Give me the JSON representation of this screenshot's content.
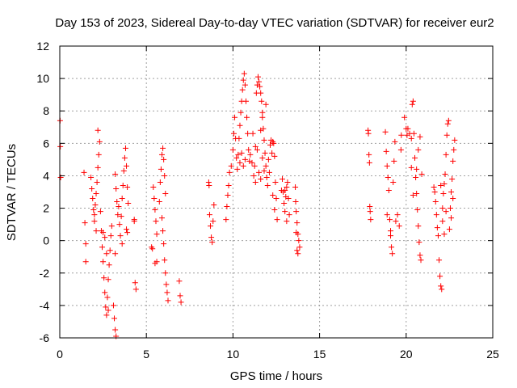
{
  "chart_data": {
    "type": "scatter",
    "title": "Day 153 of 2023, Sidereal Day-to-day VTEC variation (SDTVAR) for receiver eur2",
    "xlabel": "GPS time / hours",
    "ylabel": "SDTVAR / TECUs",
    "xlim": [
      0,
      25
    ],
    "ylim": [
      -6,
      12
    ],
    "xticks": [
      "0",
      "5",
      "10",
      "15",
      "20",
      "25"
    ],
    "yticks": [
      "-6",
      "-4",
      "-2",
      "0",
      "2",
      "4",
      "6",
      "8",
      "10",
      "12"
    ],
    "grid": true,
    "marker": "plus",
    "color": "#ff0000",
    "series": [
      {
        "name": "SDTVAR",
        "points": [
          [
            0.02,
            7.4
          ],
          [
            0.03,
            5.8
          ],
          [
            0.05,
            3.9
          ],
          [
            1.4,
            4.2
          ],
          [
            1.45,
            1.1
          ],
          [
            1.5,
            -0.2
          ],
          [
            1.5,
            -1.3
          ],
          [
            1.8,
            3.9
          ],
          [
            1.85,
            3.2
          ],
          [
            1.9,
            2.6
          ],
          [
            1.95,
            1.9
          ],
          [
            2.0,
            1.2
          ],
          [
            2.05,
            2.2
          ],
          [
            2.1,
            2.9
          ],
          [
            2.15,
            3.6
          ],
          [
            2.2,
            4.5
          ],
          [
            2.25,
            5.3
          ],
          [
            2.3,
            6.1
          ],
          [
            2.2,
            6.8
          ],
          [
            2.0,
            1.6
          ],
          [
            2.1,
            0.6
          ],
          [
            2.35,
            1.8
          ],
          [
            2.4,
            0.6
          ],
          [
            2.45,
            -0.4
          ],
          [
            2.5,
            -1.3
          ],
          [
            2.55,
            -2.3
          ],
          [
            2.6,
            -3.2
          ],
          [
            2.65,
            -4.1
          ],
          [
            2.7,
            -4.6
          ],
          [
            2.75,
            -3.5
          ],
          [
            2.8,
            -2.4
          ],
          [
            2.85,
            -1.5
          ],
          [
            2.9,
            -0.6
          ],
          [
            2.95,
            0.3
          ],
          [
            3.0,
            0.9
          ],
          [
            2.6,
            0.2
          ],
          [
            2.7,
            -0.8
          ],
          [
            2.5,
            0.5
          ],
          [
            2.8,
            -4.3
          ],
          [
            3.1,
            -4.0
          ],
          [
            3.15,
            -4.8
          ],
          [
            3.2,
            -5.5
          ],
          [
            3.25,
            -5.9
          ],
          [
            3.2,
            4.1
          ],
          [
            3.25,
            3.2
          ],
          [
            3.3,
            2.4
          ],
          [
            3.35,
            1.6
          ],
          [
            3.2,
            -0.8
          ],
          [
            3.4,
            2.1
          ],
          [
            3.45,
            1.0
          ],
          [
            3.5,
            0.3
          ],
          [
            3.55,
            1.5
          ],
          [
            3.6,
            2.6
          ],
          [
            3.65,
            3.4
          ],
          [
            3.7,
            4.3
          ],
          [
            3.75,
            5.1
          ],
          [
            3.8,
            5.7
          ],
          [
            3.85,
            4.6
          ],
          [
            3.9,
            3.3
          ],
          [
            3.95,
            2.3
          ],
          [
            3.85,
            0.7
          ],
          [
            3.9,
            0.5
          ],
          [
            3.6,
            -0.2
          ],
          [
            4.3,
            1.3
          ],
          [
            4.35,
            -2.6
          ],
          [
            4.4,
            -3.0
          ],
          [
            4.3,
            1.2
          ],
          [
            5.3,
            -0.4
          ],
          [
            5.35,
            -0.5
          ],
          [
            5.4,
            3.3
          ],
          [
            5.45,
            2.6
          ],
          [
            5.5,
            1.9
          ],
          [
            5.55,
            1.2
          ],
          [
            5.6,
            0.4
          ],
          [
            5.5,
            -1.4
          ],
          [
            5.6,
            -1.3
          ],
          [
            5.75,
            2.4
          ],
          [
            5.8,
            3.6
          ],
          [
            5.85,
            4.4
          ],
          [
            5.9,
            5.3
          ],
          [
            5.95,
            5.7
          ],
          [
            6.0,
            5.0
          ],
          [
            6.05,
            4.0
          ],
          [
            6.1,
            2.9
          ],
          [
            5.9,
            1.4
          ],
          [
            5.95,
            0.6
          ],
          [
            6.0,
            -0.2
          ],
          [
            6.05,
            -1.2
          ],
          [
            6.1,
            -2.0
          ],
          [
            6.15,
            -2.7
          ],
          [
            6.2,
            -3.2
          ],
          [
            6.25,
            -3.7
          ],
          [
            6.9,
            -2.5
          ],
          [
            6.95,
            -3.4
          ],
          [
            7.0,
            -3.8
          ],
          [
            8.6,
            3.6
          ],
          [
            8.62,
            3.4
          ],
          [
            8.65,
            1.6
          ],
          [
            8.7,
            0.9
          ],
          [
            8.75,
            0.2
          ],
          [
            8.8,
            -0.1
          ],
          [
            8.85,
            1.2
          ],
          [
            8.9,
            2.2
          ],
          [
            9.6,
            1.3
          ],
          [
            9.65,
            2.1
          ],
          [
            9.7,
            2.8
          ],
          [
            9.75,
            3.4
          ],
          [
            9.8,
            4.2
          ],
          [
            9.9,
            4.6
          ],
          [
            10.0,
            5.6
          ],
          [
            10.05,
            6.6
          ],
          [
            10.1,
            7.6
          ],
          [
            10.15,
            6.3
          ],
          [
            10.2,
            5.1
          ],
          [
            10.25,
            4.4
          ],
          [
            10.3,
            5.3
          ],
          [
            10.35,
            6.3
          ],
          [
            10.4,
            7.1
          ],
          [
            10.45,
            7.9
          ],
          [
            10.5,
            8.6
          ],
          [
            10.55,
            9.3
          ],
          [
            10.6,
            9.9
          ],
          [
            10.65,
            10.3
          ],
          [
            10.7,
            9.6
          ],
          [
            10.75,
            8.6
          ],
          [
            10.8,
            7.6
          ],
          [
            10.85,
            6.6
          ],
          [
            10.9,
            5.6
          ],
          [
            10.95,
            4.9
          ],
          [
            11.0,
            5.3
          ],
          [
            10.4,
            4.8
          ],
          [
            10.5,
            5.4
          ],
          [
            10.6,
            4.6
          ],
          [
            10.7,
            5.0
          ],
          [
            11.1,
            4.8
          ],
          [
            11.15,
            6.6
          ],
          [
            11.2,
            4.0
          ],
          [
            11.25,
            4.6
          ],
          [
            11.3,
            5.8
          ],
          [
            11.35,
            9.1
          ],
          [
            11.4,
            9.6
          ],
          [
            11.45,
            10.1
          ],
          [
            11.5,
            9.8
          ],
          [
            11.55,
            9.5
          ],
          [
            11.6,
            9.1
          ],
          [
            11.65,
            8.6
          ],
          [
            11.7,
            7.6
          ],
          [
            11.75,
            6.9
          ],
          [
            11.8,
            6.2
          ],
          [
            11.85,
            5.4
          ],
          [
            11.9,
            4.6
          ],
          [
            11.95,
            3.9
          ],
          [
            12.0,
            3.4
          ],
          [
            11.5,
            4.2
          ],
          [
            11.6,
            3.8
          ],
          [
            11.7,
            5.1
          ],
          [
            11.8,
            4.3
          ],
          [
            11.4,
            5.6
          ],
          [
            11.3,
            3.6
          ],
          [
            11.6,
            6.8
          ],
          [
            11.7,
            7.9
          ],
          [
            11.9,
            8.4
          ],
          [
            12.05,
            5.0
          ],
          [
            12.1,
            4.2
          ],
          [
            12.15,
            5.9
          ],
          [
            12.2,
            6.2
          ],
          [
            12.25,
            5.4
          ],
          [
            12.3,
            6.1
          ],
          [
            12.35,
            6.0
          ],
          [
            12.4,
            5.2
          ],
          [
            12.45,
            3.6
          ],
          [
            12.5,
            2.6
          ],
          [
            12.55,
            1.3
          ],
          [
            12.3,
            2.8
          ],
          [
            12.4,
            1.9
          ],
          [
            12.8,
            3.1
          ],
          [
            12.85,
            3.8
          ],
          [
            12.9,
            3.0
          ],
          [
            12.95,
            2.3
          ],
          [
            13.0,
            1.8
          ],
          [
            13.05,
            2.7
          ],
          [
            13.1,
            3.3
          ],
          [
            13.15,
            3.6
          ],
          [
            13.2,
            2.6
          ],
          [
            13.25,
            1.6
          ],
          [
            13.0,
            3.1
          ],
          [
            13.1,
            1.2
          ],
          [
            13.6,
            3.3
          ],
          [
            13.62,
            2.4
          ],
          [
            13.65,
            1.8
          ],
          [
            13.7,
            1.1
          ],
          [
            13.75,
            0.4
          ],
          [
            13.8,
            0.0
          ],
          [
            13.85,
            -0.4
          ],
          [
            13.7,
            -0.6
          ],
          [
            13.75,
            -0.8
          ],
          [
            13.65,
            0.5
          ],
          [
            17.8,
            6.8
          ],
          [
            17.82,
            6.6
          ],
          [
            17.85,
            5.3
          ],
          [
            17.88,
            4.8
          ],
          [
            17.9,
            2.1
          ],
          [
            17.92,
            1.8
          ],
          [
            17.95,
            1.3
          ],
          [
            18.8,
            6.7
          ],
          [
            18.85,
            5.5
          ],
          [
            18.9,
            4.6
          ],
          [
            18.95,
            3.9
          ],
          [
            19.0,
            3.1
          ],
          [
            19.05,
            1.3
          ],
          [
            19.1,
            0.3
          ],
          [
            19.15,
            -0.4
          ],
          [
            19.2,
            -0.8
          ],
          [
            19.25,
            3.6
          ],
          [
            19.3,
            4.9
          ],
          [
            19.35,
            6.1
          ],
          [
            18.9,
            1.6
          ],
          [
            19.1,
            0.6
          ],
          [
            19.4,
            1.2
          ],
          [
            19.5,
            1.6
          ],
          [
            19.6,
            0.9
          ],
          [
            19.7,
            5.6
          ],
          [
            19.72,
            6.5
          ],
          [
            19.9,
            7.6
          ],
          [
            20.0,
            6.9
          ],
          [
            20.05,
            6.5
          ],
          [
            20.1,
            6.9
          ],
          [
            20.2,
            6.6
          ],
          [
            20.3,
            6.3
          ],
          [
            20.35,
            8.4
          ],
          [
            20.4,
            8.6
          ],
          [
            20.45,
            6.6
          ],
          [
            20.5,
            5.1
          ],
          [
            20.55,
            3.9
          ],
          [
            20.6,
            2.9
          ],
          [
            20.65,
            1.9
          ],
          [
            20.7,
            0.9
          ],
          [
            20.75,
            -0.1
          ],
          [
            20.8,
            -0.9
          ],
          [
            20.85,
            -1.2
          ],
          [
            20.6,
            4.4
          ],
          [
            20.7,
            5.6
          ],
          [
            20.8,
            6.4
          ],
          [
            20.9,
            4.1
          ],
          [
            20.4,
            2.8
          ],
          [
            20.3,
            4.5
          ],
          [
            21.6,
            3.3
          ],
          [
            21.65,
            3.0
          ],
          [
            21.7,
            2.4
          ],
          [
            21.75,
            1.6
          ],
          [
            21.8,
            0.8
          ],
          [
            21.85,
            0.3
          ],
          [
            21.9,
            -1.2
          ],
          [
            21.95,
            -2.2
          ],
          [
            22.0,
            -2.8
          ],
          [
            22.05,
            -3.0
          ],
          [
            22.1,
            2.0
          ],
          [
            22.15,
            2.9
          ],
          [
            22.2,
            3.5
          ],
          [
            22.25,
            4.1
          ],
          [
            22.3,
            5.3
          ],
          [
            22.35,
            6.5
          ],
          [
            22.4,
            7.2
          ],
          [
            22.45,
            7.4
          ],
          [
            22.0,
            3.4
          ],
          [
            22.1,
            1.2
          ],
          [
            22.2,
            0.4
          ],
          [
            22.3,
            1.8
          ],
          [
            22.5,
            0.7
          ],
          [
            22.55,
            2.0
          ],
          [
            22.6,
            3.0
          ],
          [
            22.65,
            3.8
          ],
          [
            22.7,
            4.9
          ],
          [
            22.75,
            5.6
          ],
          [
            22.8,
            6.2
          ],
          [
            22.6,
            1.4
          ],
          [
            22.7,
            2.6
          ]
        ]
      }
    ]
  }
}
